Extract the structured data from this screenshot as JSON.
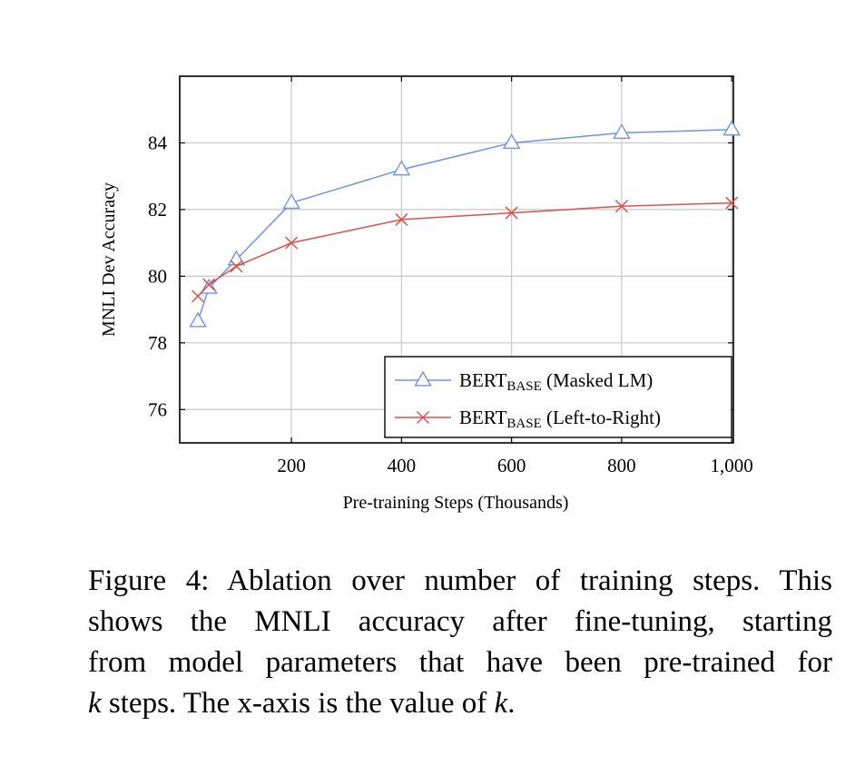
{
  "chart_data": {
    "type": "line",
    "x": [
      30,
      50,
      100,
      200,
      400,
      600,
      800,
      1000
    ],
    "series": [
      {
        "name_main": "BERT",
        "name_sub": "BASE",
        "name_suffix": "(Masked LM)",
        "marker": "triangle",
        "color": "#6f93e6",
        "values": [
          78.65,
          79.65,
          80.5,
          82.2,
          83.2,
          84.0,
          84.3,
          84.4
        ]
      },
      {
        "name_main": "BERT",
        "name_sub": "BASE",
        "name_suffix": "(Left-to-Right)",
        "marker": "cross",
        "color": "#d9534a",
        "values": [
          79.4,
          79.75,
          80.3,
          81.0,
          81.7,
          81.9,
          82.1,
          82.2
        ]
      }
    ],
    "xlim": [
      -3,
      1003
    ],
    "ylim": [
      75,
      86
    ],
    "xticks": [
      200,
      400,
      600,
      800,
      1000
    ],
    "xtick_labels": [
      "200",
      "400",
      "600",
      "800",
      "1,000"
    ],
    "yticks": [
      76,
      78,
      80,
      82,
      84
    ],
    "ytick_labels": [
      "76",
      "78",
      "80",
      "82",
      "84"
    ],
    "xlabel": "Pre-training Steps (Thousands)",
    "ylabel": "MNLI Dev Accuracy",
    "grid": true,
    "legend_position": "bottom-right"
  },
  "caption": {
    "lines": [
      "Figure 4: Ablation over number of training steps. This",
      "shows the MNLI accuracy after fine-tuning, starting",
      "from model parameters that have been pre-trained for"
    ],
    "last_var1": "k",
    "last_mid": " steps. The x-axis is the value of ",
    "last_var2": "k",
    "last_end": "."
  }
}
